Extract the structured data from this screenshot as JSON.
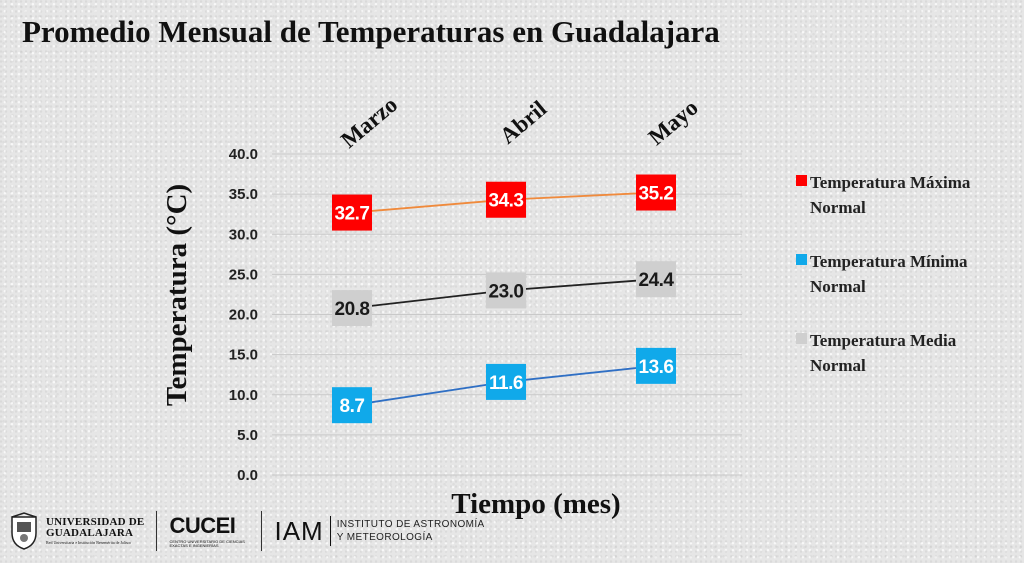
{
  "title": "Promedio Mensual de Temperaturas en Guadalajara",
  "chart_data": {
    "type": "line",
    "title": "Promedio Mensual de Temperaturas en Guadalajara",
    "xlabel": "Tiempo (mes)",
    "ylabel": "Temperatura  (°C)",
    "categories": [
      "Marzo",
      "Abril",
      "Mayo"
    ],
    "ylim": [
      0,
      40
    ],
    "yticks": [
      "0.0",
      "5.0",
      "10.0",
      "15.0",
      "20.0",
      "25.0",
      "30.0",
      "35.0",
      "40.0"
    ],
    "grid": true,
    "legend_position": "right",
    "series": [
      {
        "name": "Temperatura Máxima Normal",
        "values": [
          32.7,
          34.3,
          35.2
        ],
        "labels": [
          "32.7",
          "34.3",
          "35.2"
        ],
        "line_color": "#f08a3c",
        "label_bg": "#ff0000",
        "label_color": "#ffffff",
        "legend_color": "#ff0000"
      },
      {
        "name": "Temperatura Mínima Normal",
        "values": [
          8.7,
          11.6,
          13.6
        ],
        "labels": [
          "8.7",
          "11.6",
          "13.6"
        ],
        "line_color": "#2f6fc4",
        "label_bg": "#10a9ea",
        "label_color": "#ffffff",
        "legend_color": "#10a9ea"
      },
      {
        "name": "Temperatura Media Normal",
        "values": [
          20.8,
          23.0,
          24.4
        ],
        "labels": [
          "20.8",
          "23.0",
          "24.4"
        ],
        "line_color": "#222222",
        "label_bg": "#cfcfcf",
        "label_color": "#1a1a1a",
        "legend_color": "#cfcfcf"
      }
    ]
  },
  "footer": {
    "udg_line1": "UNIVERSIDAD DE",
    "udg_line2": "GUADALAJARA",
    "udg_sub": "Red Universitaria e Institución Benemérita de Jalisco",
    "cucei": "CUCEI",
    "cucei_sub": "CENTRO UNIVERSITARIO DE CIENCIAS EXACTAS E INGENIERÍAS",
    "iam": "IAM",
    "iam_line1": "INSTITUTO DE ASTRONOMÍA",
    "iam_line2": "Y METEOROLOGÍA"
  }
}
